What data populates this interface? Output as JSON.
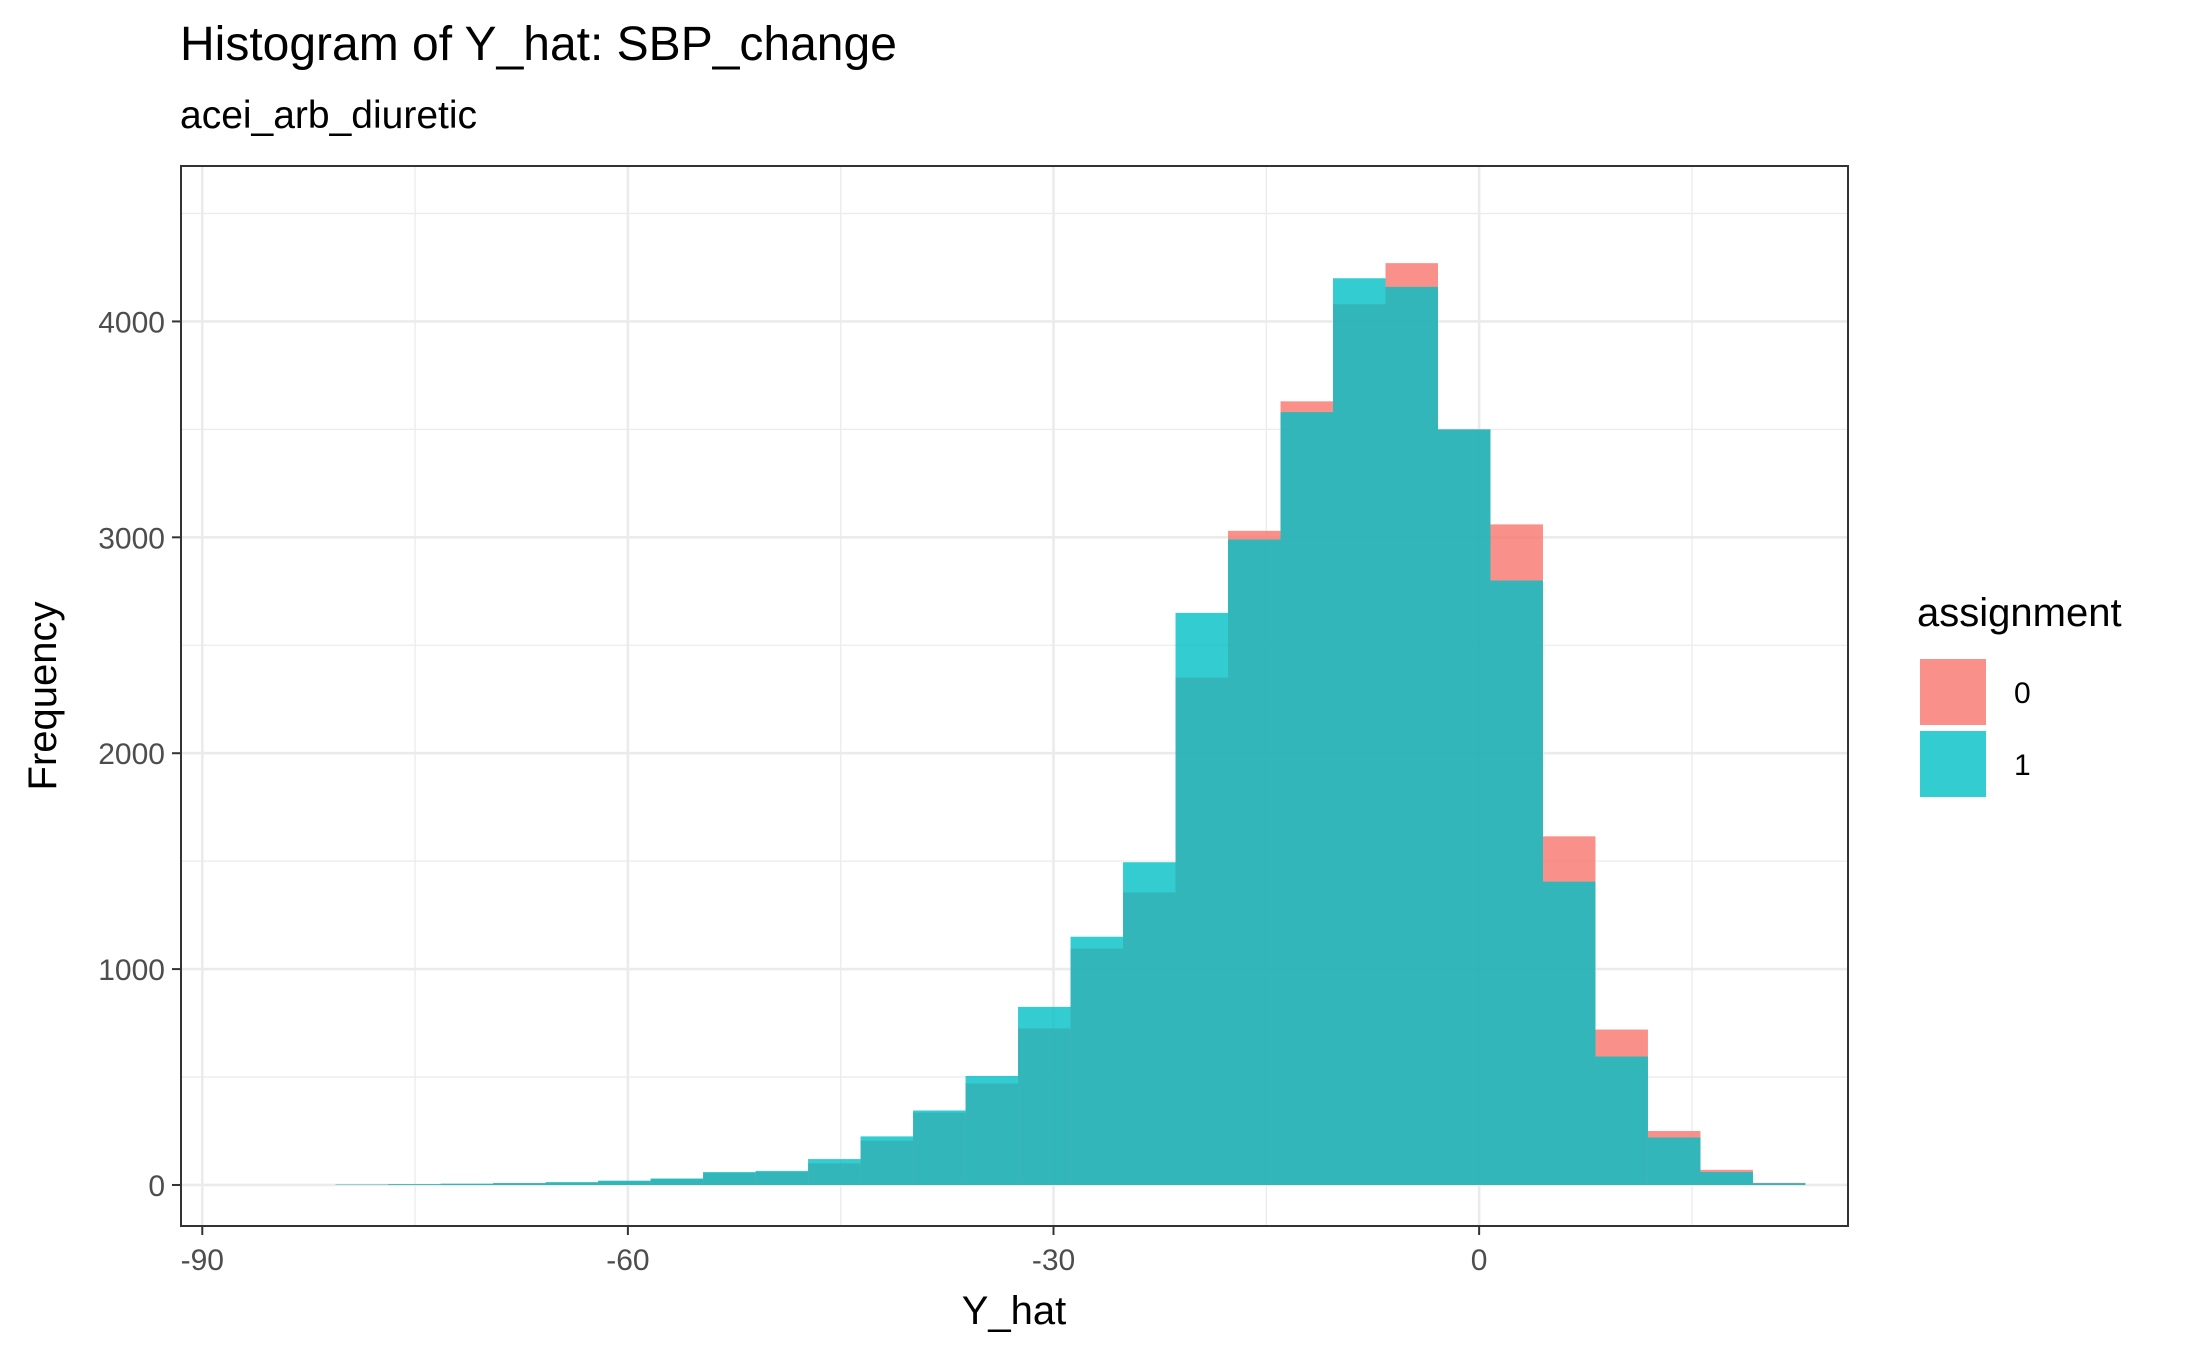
{
  "chart_data": {
    "type": "bar",
    "subtype": "overlaid histogram",
    "title": "Histogram of Y_hat: SBP_change",
    "subtitle": "acei_arb_diuretic",
    "xlabel": "Y_hat",
    "ylabel": "Frequency",
    "xlim": [
      -91.5,
      26.0
    ],
    "ylim": [
      -190,
      4720
    ],
    "x_ticks": [
      -90,
      -60,
      -30,
      0
    ],
    "x_tick_labels": [
      "-90",
      "-60",
      "-30",
      "0"
    ],
    "y_ticks": [
      0,
      1000,
      2000,
      3000,
      4000
    ],
    "y_tick_labels": [
      "0",
      "1000",
      "2000",
      "3000",
      "4000"
    ],
    "grid": true,
    "legend": {
      "title": "assignment",
      "position": "right",
      "entries": [
        {
          "label": "0",
          "color": "#F8766D"
        },
        {
          "label": "1",
          "color": "#00BFC4"
        }
      ]
    },
    "bin_edges": [
      -88.0,
      -84.3,
      -80.6,
      -76.9,
      -73.2,
      -69.5,
      -65.8,
      -62.1,
      -58.4,
      -54.7,
      -51.0,
      -47.3,
      -43.6,
      -39.9,
      -36.2,
      -32.5,
      -28.8,
      -25.1,
      -21.4,
      -17.7,
      -14.0,
      -10.3,
      -6.6,
      -2.9,
      0.8,
      4.5,
      8.2,
      11.9,
      15.6,
      19.3,
      23.0
    ],
    "series": [
      {
        "name": "0",
        "color": "#F8766D",
        "opacity": 0.8,
        "values": [
          0,
          0,
          2,
          3,
          5,
          8,
          12,
          18,
          28,
          55,
          60,
          100,
          205,
          335,
          470,
          725,
          1095,
          1355,
          2350,
          3030,
          3630,
          4080,
          4270,
          3500,
          3060,
          1615,
          720,
          250,
          70,
          10
        ]
      },
      {
        "name": "1",
        "color": "#00BFC4",
        "opacity": 0.8,
        "values": [
          0,
          0,
          2,
          4,
          6,
          9,
          13,
          20,
          30,
          60,
          65,
          120,
          225,
          345,
          505,
          825,
          1150,
          1495,
          2650,
          2990,
          3580,
          4200,
          4160,
          3500,
          2800,
          1405,
          595,
          220,
          60,
          8
        ]
      }
    ]
  }
}
